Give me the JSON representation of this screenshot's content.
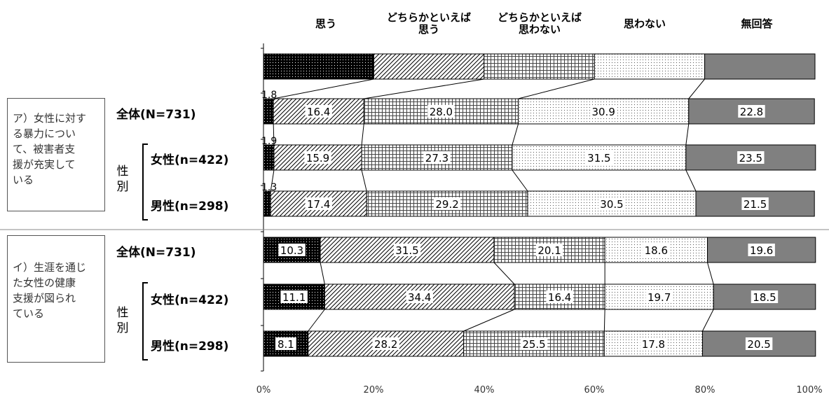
{
  "chart_data": {
    "type": "bar",
    "stacked": true,
    "orientation": "horizontal",
    "legend_placement": "top",
    "categories": [
      "思う",
      "どちらかといえば\n思う",
      "どちらかといえば\n思わない",
      "思わない",
      "無回答"
    ],
    "xlim": [
      0,
      100
    ],
    "x_ticks": [
      "0%",
      "20%",
      "40%",
      "60%",
      "80%",
      "100%"
    ],
    "groups": [
      {
        "label": "ア）女性に対する暴力について、被害者支援が充実している",
        "rows": [
          {
            "label": "全体(N=731)",
            "values": [
              1.8,
              16.4,
              28.0,
              30.9,
              22.8
            ]
          },
          {
            "label": "女性(n=422)",
            "values": [
              1.9,
              15.9,
              27.3,
              31.5,
              23.5
            ]
          },
          {
            "label": "男性(n=298)",
            "values": [
              1.3,
              17.4,
              29.2,
              30.5,
              21.5
            ]
          }
        ]
      },
      {
        "label": "イ）生涯を通じた女性の健康支援が図られている",
        "rows": [
          {
            "label": "全体(N=731)",
            "values": [
              10.3,
              31.5,
              20.1,
              18.6,
              19.6
            ]
          },
          {
            "label": "女性(n=422)",
            "values": [
              11.1,
              34.4,
              16.4,
              19.7,
              18.5
            ]
          },
          {
            "label": "男性(n=298)",
            "values": [
              8.1,
              28.2,
              25.5,
              17.8,
              20.5
            ]
          }
        ]
      }
    ],
    "value_labels": [
      [
        "1.8",
        "16.4",
        "28.0",
        "30.9",
        "22.8"
      ],
      [
        "1.9",
        "15.9",
        "27.3",
        "31.5",
        "23.5"
      ],
      [
        "1.3",
        "17.4",
        "29.2",
        "30.5",
        "21.5"
      ],
      [
        "10.3",
        "31.5",
        "20.1",
        "18.6",
        "19.6"
      ],
      [
        "11.1",
        "34.4",
        "16.4",
        "19.7",
        "18.5"
      ],
      [
        "8.1",
        "28.2",
        "25.5",
        "17.8",
        "20.5"
      ]
    ],
    "legend_bar_values": [
      20,
      20,
      20,
      20,
      20
    ]
  },
  "questions": {
    "a": "ア）女性に対す\nる暴力につい\nて、被害者支\n援が充実して\nいる",
    "b": "イ）生涯を通じ\nた女性の健康\n支援が図られ\nている"
  },
  "row_labels": {
    "a_total": "全体(N=731)",
    "a_female": "女性(n=422)",
    "a_male": "男性(n=298)",
    "b_total": "全体(N=731)",
    "b_female": "女性(n=422)",
    "b_male": "男性(n=298)"
  },
  "gender_label": "性\n別",
  "legend_labels": {
    "c0": "思う",
    "c1": "どちらかといえば\n思う",
    "c2": "どちらかといえば\n思わない",
    "c3": "思わない",
    "c4": "無回答"
  },
  "ticks": {
    "t0": "0%",
    "t1": "20%",
    "t2": "40%",
    "t3": "60%",
    "t4": "80%",
    "t5": "100%"
  }
}
